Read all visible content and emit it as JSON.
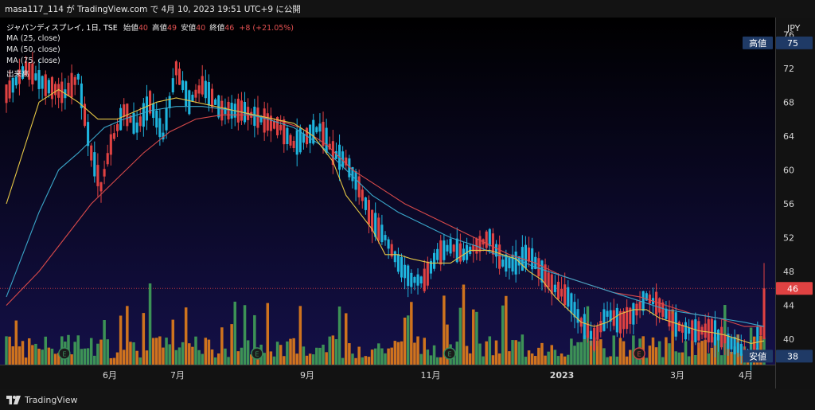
{
  "header": {
    "publish_text": "masa117_114 が TradingView.com で 4月 10, 2023 19:51 UTC+9 に公開"
  },
  "legend": {
    "symbol": "ジャパンディスプレイ, 1日, TSE",
    "open_label": "始値",
    "open_value": "40",
    "high_label": "高値",
    "high_value": "49",
    "low_label": "安値",
    "low_value": "40",
    "close_label": "終値",
    "close_value": "46",
    "change": "+8 (+21.05%)",
    "indicators": [
      "MA (25, close)",
      "MA (50, close)",
      "MA (75, close)",
      "出来高"
    ]
  },
  "price_axis": {
    "currency": "JPY",
    "ticks": [
      "76",
      "72",
      "68",
      "64",
      "60",
      "56",
      "52",
      "48",
      "44",
      "40"
    ]
  },
  "time_axis": {
    "labels": [
      "6月",
      "7月",
      "9月",
      "11月",
      "2023",
      "3月",
      "4月"
    ]
  },
  "markers": {
    "high_label": "高値",
    "high_price": "75",
    "current_price": "46",
    "low_label": "安値",
    "low_price": "38"
  },
  "footer": {
    "brand": "TradingView"
  },
  "colors": {
    "up": "#1eb5de",
    "down": "#e04242",
    "vol_up": "#3f9a57",
    "vol_down": "#d9791c",
    "ma25": "#e5c645",
    "ma50": "#3aa6c9",
    "ma75": "#d84a4a",
    "earnings": "#3a8c5c",
    "earnings_red": "#c84444"
  },
  "chart_data": {
    "type": "candlestick",
    "title": "ジャパンディスプレイ, 1日, TSE",
    "ylabel": "JPY",
    "ylim": [
      37,
      78
    ],
    "x_labels": [
      "6月",
      "7月",
      "9月",
      "11月",
      "2023",
      "3月",
      "4月"
    ],
    "price_path": [
      [
        0,
        69
      ],
      [
        6,
        72
      ],
      [
        12,
        70
      ],
      [
        18,
        69
      ],
      [
        22,
        71
      ],
      [
        26,
        62
      ],
      [
        29,
        58
      ],
      [
        32,
        63
      ],
      [
        36,
        67
      ],
      [
        40,
        65
      ],
      [
        44,
        68
      ],
      [
        48,
        64
      ],
      [
        52,
        72
      ],
      [
        56,
        68
      ],
      [
        60,
        70
      ],
      [
        66,
        67
      ],
      [
        72,
        67
      ],
      [
        78,
        66
      ],
      [
        84,
        65
      ],
      [
        88,
        63
      ],
      [
        92,
        64
      ],
      [
        96,
        65
      ],
      [
        100,
        62
      ],
      [
        104,
        61
      ],
      [
        108,
        58
      ],
      [
        112,
        54
      ],
      [
        116,
        52
      ],
      [
        120,
        49
      ],
      [
        124,
        47
      ],
      [
        128,
        47
      ],
      [
        132,
        50
      ],
      [
        136,
        51
      ],
      [
        140,
        50
      ],
      [
        144,
        51
      ],
      [
        148,
        52
      ],
      [
        152,
        49
      ],
      [
        156,
        49
      ],
      [
        160,
        50
      ],
      [
        164,
        48
      ],
      [
        168,
        46
      ],
      [
        172,
        45
      ],
      [
        176,
        42
      ],
      [
        180,
        40
      ],
      [
        184,
        43
      ],
      [
        188,
        42
      ],
      [
        192,
        43
      ],
      [
        196,
        45
      ],
      [
        200,
        44
      ],
      [
        204,
        42
      ],
      [
        208,
        41
      ],
      [
        212,
        41
      ],
      [
        216,
        41
      ],
      [
        220,
        40
      ],
      [
        224,
        39
      ],
      [
        228,
        38
      ],
      [
        231,
        41
      ],
      [
        232,
        46
      ]
    ],
    "last_candle": {
      "open": 40,
      "high": 49,
      "low": 40,
      "close": 46
    },
    "ma25": [
      [
        0,
        56
      ],
      [
        10,
        68
      ],
      [
        16,
        69.5
      ],
      [
        22,
        68
      ],
      [
        28,
        66
      ],
      [
        34,
        66
      ],
      [
        40,
        67
      ],
      [
        46,
        68
      ],
      [
        52,
        68.5
      ],
      [
        58,
        68
      ],
      [
        64,
        67.5
      ],
      [
        70,
        67
      ],
      [
        76,
        66.5
      ],
      [
        82,
        66
      ],
      [
        88,
        65.5
      ],
      [
        94,
        64
      ],
      [
        100,
        61
      ],
      [
        104,
        57
      ],
      [
        108,
        55
      ],
      [
        112,
        53
      ],
      [
        116,
        50
      ],
      [
        120,
        50
      ],
      [
        124,
        49.5
      ],
      [
        130,
        49
      ],
      [
        136,
        49
      ],
      [
        142,
        50.5
      ],
      [
        148,
        50.5
      ],
      [
        152,
        50
      ],
      [
        156,
        49.5
      ],
      [
        160,
        48
      ],
      [
        164,
        47
      ],
      [
        168,
        45
      ],
      [
        172,
        43.5
      ],
      [
        176,
        42
      ],
      [
        180,
        41.5
      ],
      [
        184,
        42
      ],
      [
        188,
        43
      ],
      [
        192,
        43.5
      ],
      [
        196,
        43.5
      ],
      [
        200,
        42.5
      ],
      [
        204,
        42
      ],
      [
        208,
        41.5
      ],
      [
        212,
        41
      ],
      [
        216,
        40.8
      ],
      [
        220,
        40.5
      ],
      [
        224,
        40
      ],
      [
        228,
        39.5
      ],
      [
        232,
        39.8
      ]
    ],
    "ma50": [
      [
        0,
        45
      ],
      [
        10,
        55
      ],
      [
        16,
        60
      ],
      [
        22,
        62
      ],
      [
        30,
        65
      ],
      [
        36,
        66
      ],
      [
        44,
        67
      ],
      [
        52,
        67.5
      ],
      [
        60,
        67.5
      ],
      [
        70,
        67
      ],
      [
        80,
        66
      ],
      [
        88,
        65
      ],
      [
        96,
        63
      ],
      [
        104,
        60
      ],
      [
        112,
        57
      ],
      [
        120,
        55
      ],
      [
        128,
        53.5
      ],
      [
        136,
        52
      ],
      [
        144,
        51
      ],
      [
        150,
        50
      ],
      [
        156,
        49.5
      ],
      [
        162,
        48.5
      ],
      [
        170,
        47.5
      ],
      [
        178,
        46.5
      ],
      [
        186,
        45.5
      ],
      [
        194,
        44.5
      ],
      [
        202,
        43.5
      ],
      [
        210,
        43
      ],
      [
        218,
        42.5
      ],
      [
        226,
        42
      ],
      [
        232,
        41.5
      ]
    ],
    "ma75": [
      [
        0,
        44
      ],
      [
        10,
        48
      ],
      [
        18,
        52
      ],
      [
        26,
        56
      ],
      [
        34,
        59
      ],
      [
        42,
        62
      ],
      [
        50,
        64.5
      ],
      [
        58,
        66
      ],
      [
        66,
        66.5
      ],
      [
        74,
        66.5
      ],
      [
        82,
        66
      ],
      [
        90,
        65
      ],
      [
        98,
        63
      ],
      [
        106,
        60
      ],
      [
        114,
        58
      ],
      [
        122,
        56
      ],
      [
        130,
        54.5
      ],
      [
        138,
        53
      ],
      [
        146,
        51.5
      ],
      [
        154,
        50
      ],
      [
        162,
        49
      ],
      [
        170,
        47.5
      ],
      [
        178,
        46.5
      ],
      [
        186,
        45.5
      ],
      [
        194,
        45
      ],
      [
        202,
        44
      ],
      [
        210,
        43
      ],
      [
        218,
        42.5
      ],
      [
        226,
        41.5
      ],
      [
        232,
        41.5
      ]
    ],
    "volume": {
      "range": [
        0,
        100
      ],
      "count": 233,
      "max_bar_index": 44
    }
  }
}
